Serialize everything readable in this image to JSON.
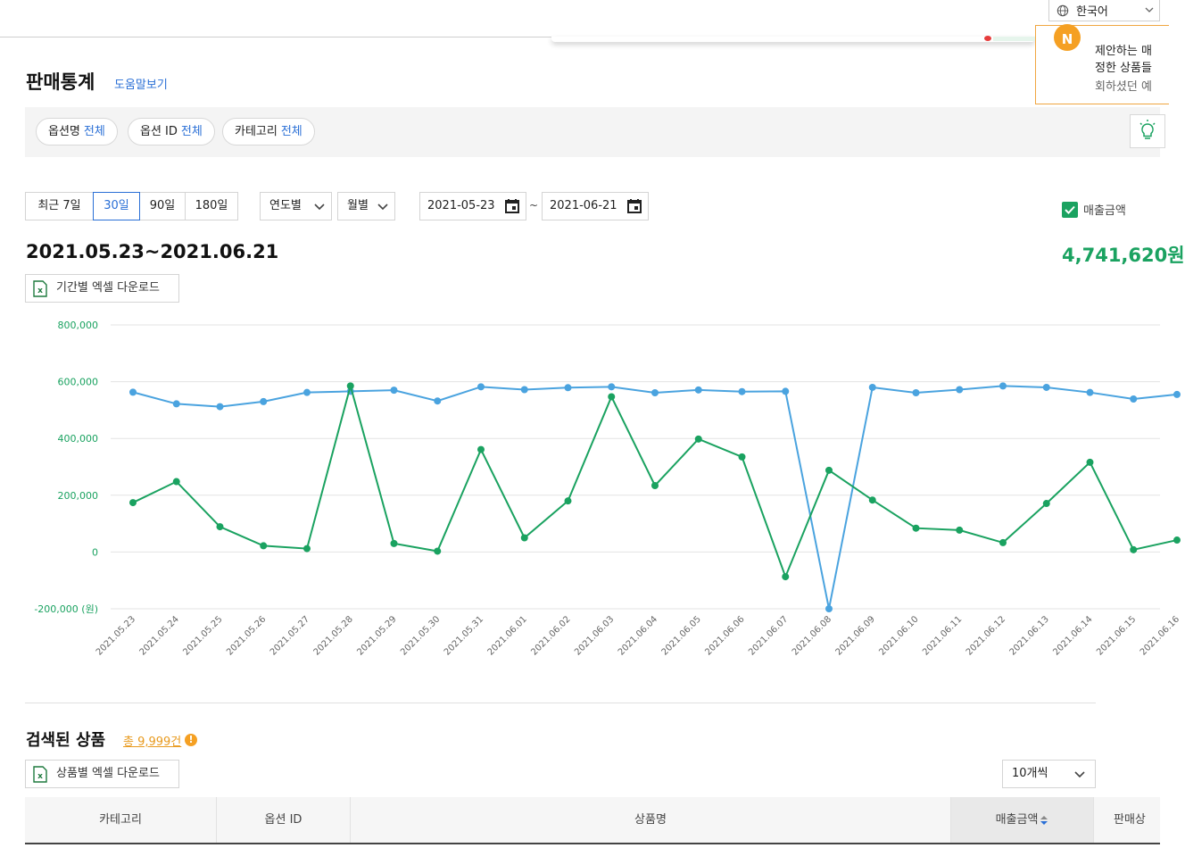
{
  "language": {
    "label": "한국어"
  },
  "notice": {
    "badge": "N",
    "line1": "제안하는 매",
    "line2": "정한 상품들",
    "line3": "회하셨던 예"
  },
  "header": {
    "title": "판매통계",
    "help_link": "도움말보기"
  },
  "filters": [
    {
      "label": "옵션명",
      "value": "전체"
    },
    {
      "label": "옵션 ID",
      "value": "전체"
    },
    {
      "label": "카테고리",
      "value": "전체"
    }
  ],
  "period_buttons": [
    "최근 7일",
    "30일",
    "90일",
    "180일"
  ],
  "period_selected": "30일",
  "selects": {
    "yearly": "연도별",
    "monthly": "월별"
  },
  "dates": {
    "start": "2021-05-23",
    "separator": "~",
    "end": "2021-06-21"
  },
  "legend": {
    "label": "매출금액",
    "checked": true
  },
  "summary": {
    "range": "2021.05.23~2021.06.21",
    "total": "4,741,620원"
  },
  "excel_period": "기간별 엑셀 다운로드",
  "colors": {
    "accent": "#2a6fd6",
    "green": "#1aa260",
    "blue_series": "#4aa3df",
    "orange": "#f5a023"
  },
  "chart_data": {
    "type": "line",
    "x": [
      "2021.05.23",
      "2021.05.24",
      "2021.05.25",
      "2021.05.26",
      "2021.05.27",
      "2021.05.28",
      "2021.05.29",
      "2021.05.30",
      "2021.05.31",
      "2021.06.01",
      "2021.06.02",
      "2021.06.03",
      "2021.06.04",
      "2021.06.05",
      "2021.06.06",
      "2021.06.07",
      "2021.06.08",
      "2021.06.09",
      "2021.06.10",
      "2021.06.11",
      "2021.06.12",
      "2021.06.13",
      "2021.06.14",
      "2021.06.15",
      "2021.06.16"
    ],
    "yticks": [
      "800,000",
      "600,000",
      "400,000",
      "200,000",
      "0",
      "-200,000 (원)"
    ],
    "ylim": [
      -200000,
      800000
    ],
    "series": [
      {
        "color": "#4aa3df",
        "values": [
          563000,
          522000,
          512000,
          530000,
          562000,
          566000,
          570000,
          532000,
          582000,
          572000,
          579000,
          582000,
          561000,
          571000,
          565000,
          566000,
          -200000,
          580000,
          561000,
          572000,
          585000,
          580000,
          562000,
          539000,
          555000
        ]
      },
      {
        "color": "#1aa260",
        "values": [
          174000,
          248000,
          89000,
          22000,
          12000,
          585000,
          30000,
          3000,
          361000,
          50000,
          180000,
          547000,
          234000,
          398000,
          335000,
          -87000,
          288000,
          183000,
          84000,
          77000,
          33000,
          171000,
          316000,
          8000,
          42000
        ]
      }
    ],
    "grid": true
  },
  "products": {
    "title": "검색된 상품",
    "count": "총 9,999건",
    "warn_icon": "!",
    "excel": "상품별 엑셀 다운로드",
    "page_size": "10개씩",
    "columns": [
      "카테고리",
      "옵션 ID",
      "상품명",
      "매출금액",
      "판매상"
    ]
  }
}
